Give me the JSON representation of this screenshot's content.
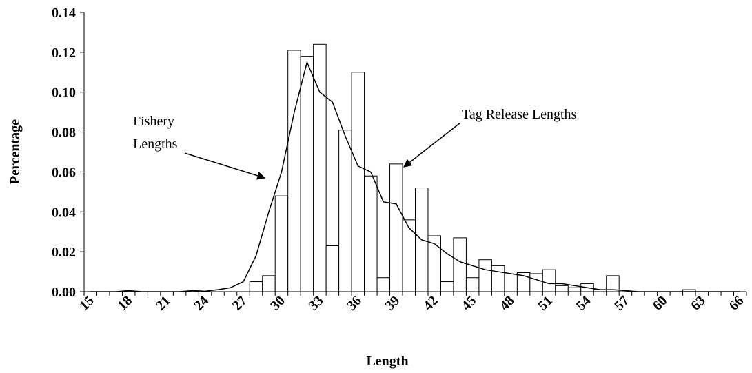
{
  "chart_data": {
    "type": "combo",
    "x_label": "Length",
    "y_label": "Percentage",
    "categories": [
      "15",
      null,
      null,
      "18",
      null,
      null,
      "21",
      null,
      null,
      "24",
      null,
      null,
      "27",
      null,
      null,
      "30",
      null,
      null,
      "33",
      null,
      null,
      "36",
      null,
      null,
      "39",
      null,
      null,
      "42",
      null,
      null,
      "45",
      null,
      null,
      "48",
      null,
      null,
      "51",
      null,
      null,
      "54",
      null,
      null,
      "57",
      null,
      null,
      "60",
      null,
      null,
      "63",
      null,
      null,
      "66"
    ],
    "series": [
      {
        "type": "bar",
        "color": "#ffffff",
        "values": [
          0,
          0,
          0,
          0,
          0,
          0,
          0,
          0,
          0,
          0,
          0,
          0,
          0,
          0.005,
          0.008,
          0.048,
          0.121,
          0.118,
          0.124,
          0.023,
          0.081,
          0.11,
          0.058,
          0.007,
          0.064,
          0.036,
          0.052,
          0.028,
          0.005,
          0.027,
          0.007,
          0.016,
          0.013,
          0,
          0.0095,
          0.009,
          0.011,
          0.003,
          0.002,
          0.004,
          0.001,
          0.008,
          0,
          0,
          0,
          0,
          0,
          0.001,
          0,
          0,
          0,
          0
        ]
      },
      {
        "type": "line",
        "color": "#000000",
        "values": [
          0,
          0,
          0,
          0.0005,
          0,
          0,
          0,
          0,
          0.0005,
          0.0002,
          0.001,
          0.002,
          0.005,
          0.018,
          0.04,
          0.06,
          0.09,
          0.115,
          0.1,
          0.095,
          0.078,
          0.063,
          0.06,
          0.045,
          0.044,
          0.032,
          0.026,
          0.024,
          0.019,
          0.015,
          0.013,
          0.011,
          0.01,
          0.009,
          0.008,
          0.006,
          0.004,
          0.004,
          0.003,
          0.002,
          0.001,
          0.001,
          0.0005,
          0,
          0,
          0,
          0,
          0,
          0,
          0,
          0,
          0
        ]
      }
    ],
    "annotations": [
      {
        "lines": [
          "Fishery",
          "Lengths"
        ]
      },
      {
        "lines": [
          "Tag Release Lengths"
        ]
      }
    ],
    "ylim": [
      0,
      0.14
    ],
    "yticks": [
      {
        "value": 0,
        "label": "0.00"
      },
      {
        "value": 0.02,
        "label": "0.02"
      },
      {
        "value": 0.04,
        "label": "0.04"
      },
      {
        "value": 0.06,
        "label": "0.06"
      },
      {
        "value": 0.08,
        "label": "0.08"
      },
      {
        "value": 0.1,
        "label": "0.10"
      },
      {
        "value": 0.12,
        "label": "0.12"
      },
      {
        "value": 0.14,
        "label": "0.14"
      }
    ],
    "grid": false
  }
}
